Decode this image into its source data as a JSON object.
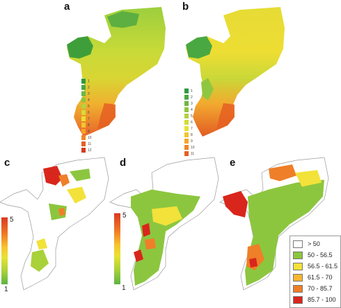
{
  "panels": [
    {
      "id": "a",
      "label": "a"
    },
    {
      "id": "b",
      "label": "b"
    },
    {
      "id": "c",
      "label": "c"
    },
    {
      "id": "d",
      "label": "d"
    },
    {
      "id": "e",
      "label": "e"
    }
  ],
  "small_legend": {
    "labels": [
      "1",
      "2",
      "3",
      "4",
      "5",
      "6",
      "7",
      "8",
      "9",
      "10",
      "11",
      "12"
    ],
    "colors": [
      "#2e9a3e",
      "#4aa843",
      "#6cb844",
      "#8fc640",
      "#b3d23c",
      "#d3dc36",
      "#eadf33",
      "#f2c62e",
      "#f3a52b",
      "#ef8527",
      "#e55f22",
      "#d63a1d"
    ]
  },
  "scale_bar": {
    "max_label": "5",
    "min_label": "1",
    "colors": [
      "#d93a20",
      "#f07a25",
      "#f7c52e",
      "#e7e231",
      "#a9d13a",
      "#5cb442"
    ]
  },
  "class_legend": {
    "items": [
      {
        "label": "> 50",
        "color": "#ffffff"
      },
      {
        "label": "50 - 56.5",
        "color": "#8cc63f"
      },
      {
        "label": "56.5 - 61.5",
        "color": "#f2e23a"
      },
      {
        "label": "61.5 - 70",
        "color": "#f8b631"
      },
      {
        "label": "70 - 85.7",
        "color": "#ef7f28"
      },
      {
        "label": "85.7 - 100",
        "color": "#d9261c"
      }
    ]
  }
}
